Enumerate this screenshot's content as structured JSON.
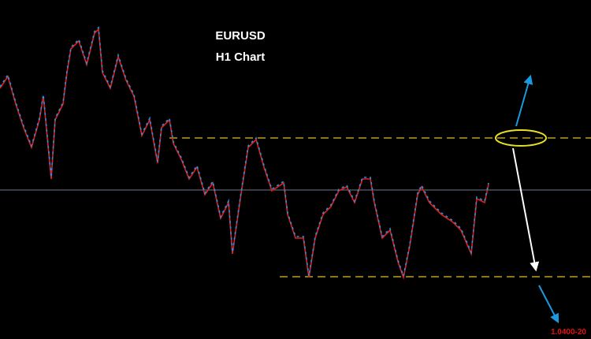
{
  "title": "EURUSD",
  "subtitle": "H1 Chart",
  "price_label": "1.0400-20"
}
